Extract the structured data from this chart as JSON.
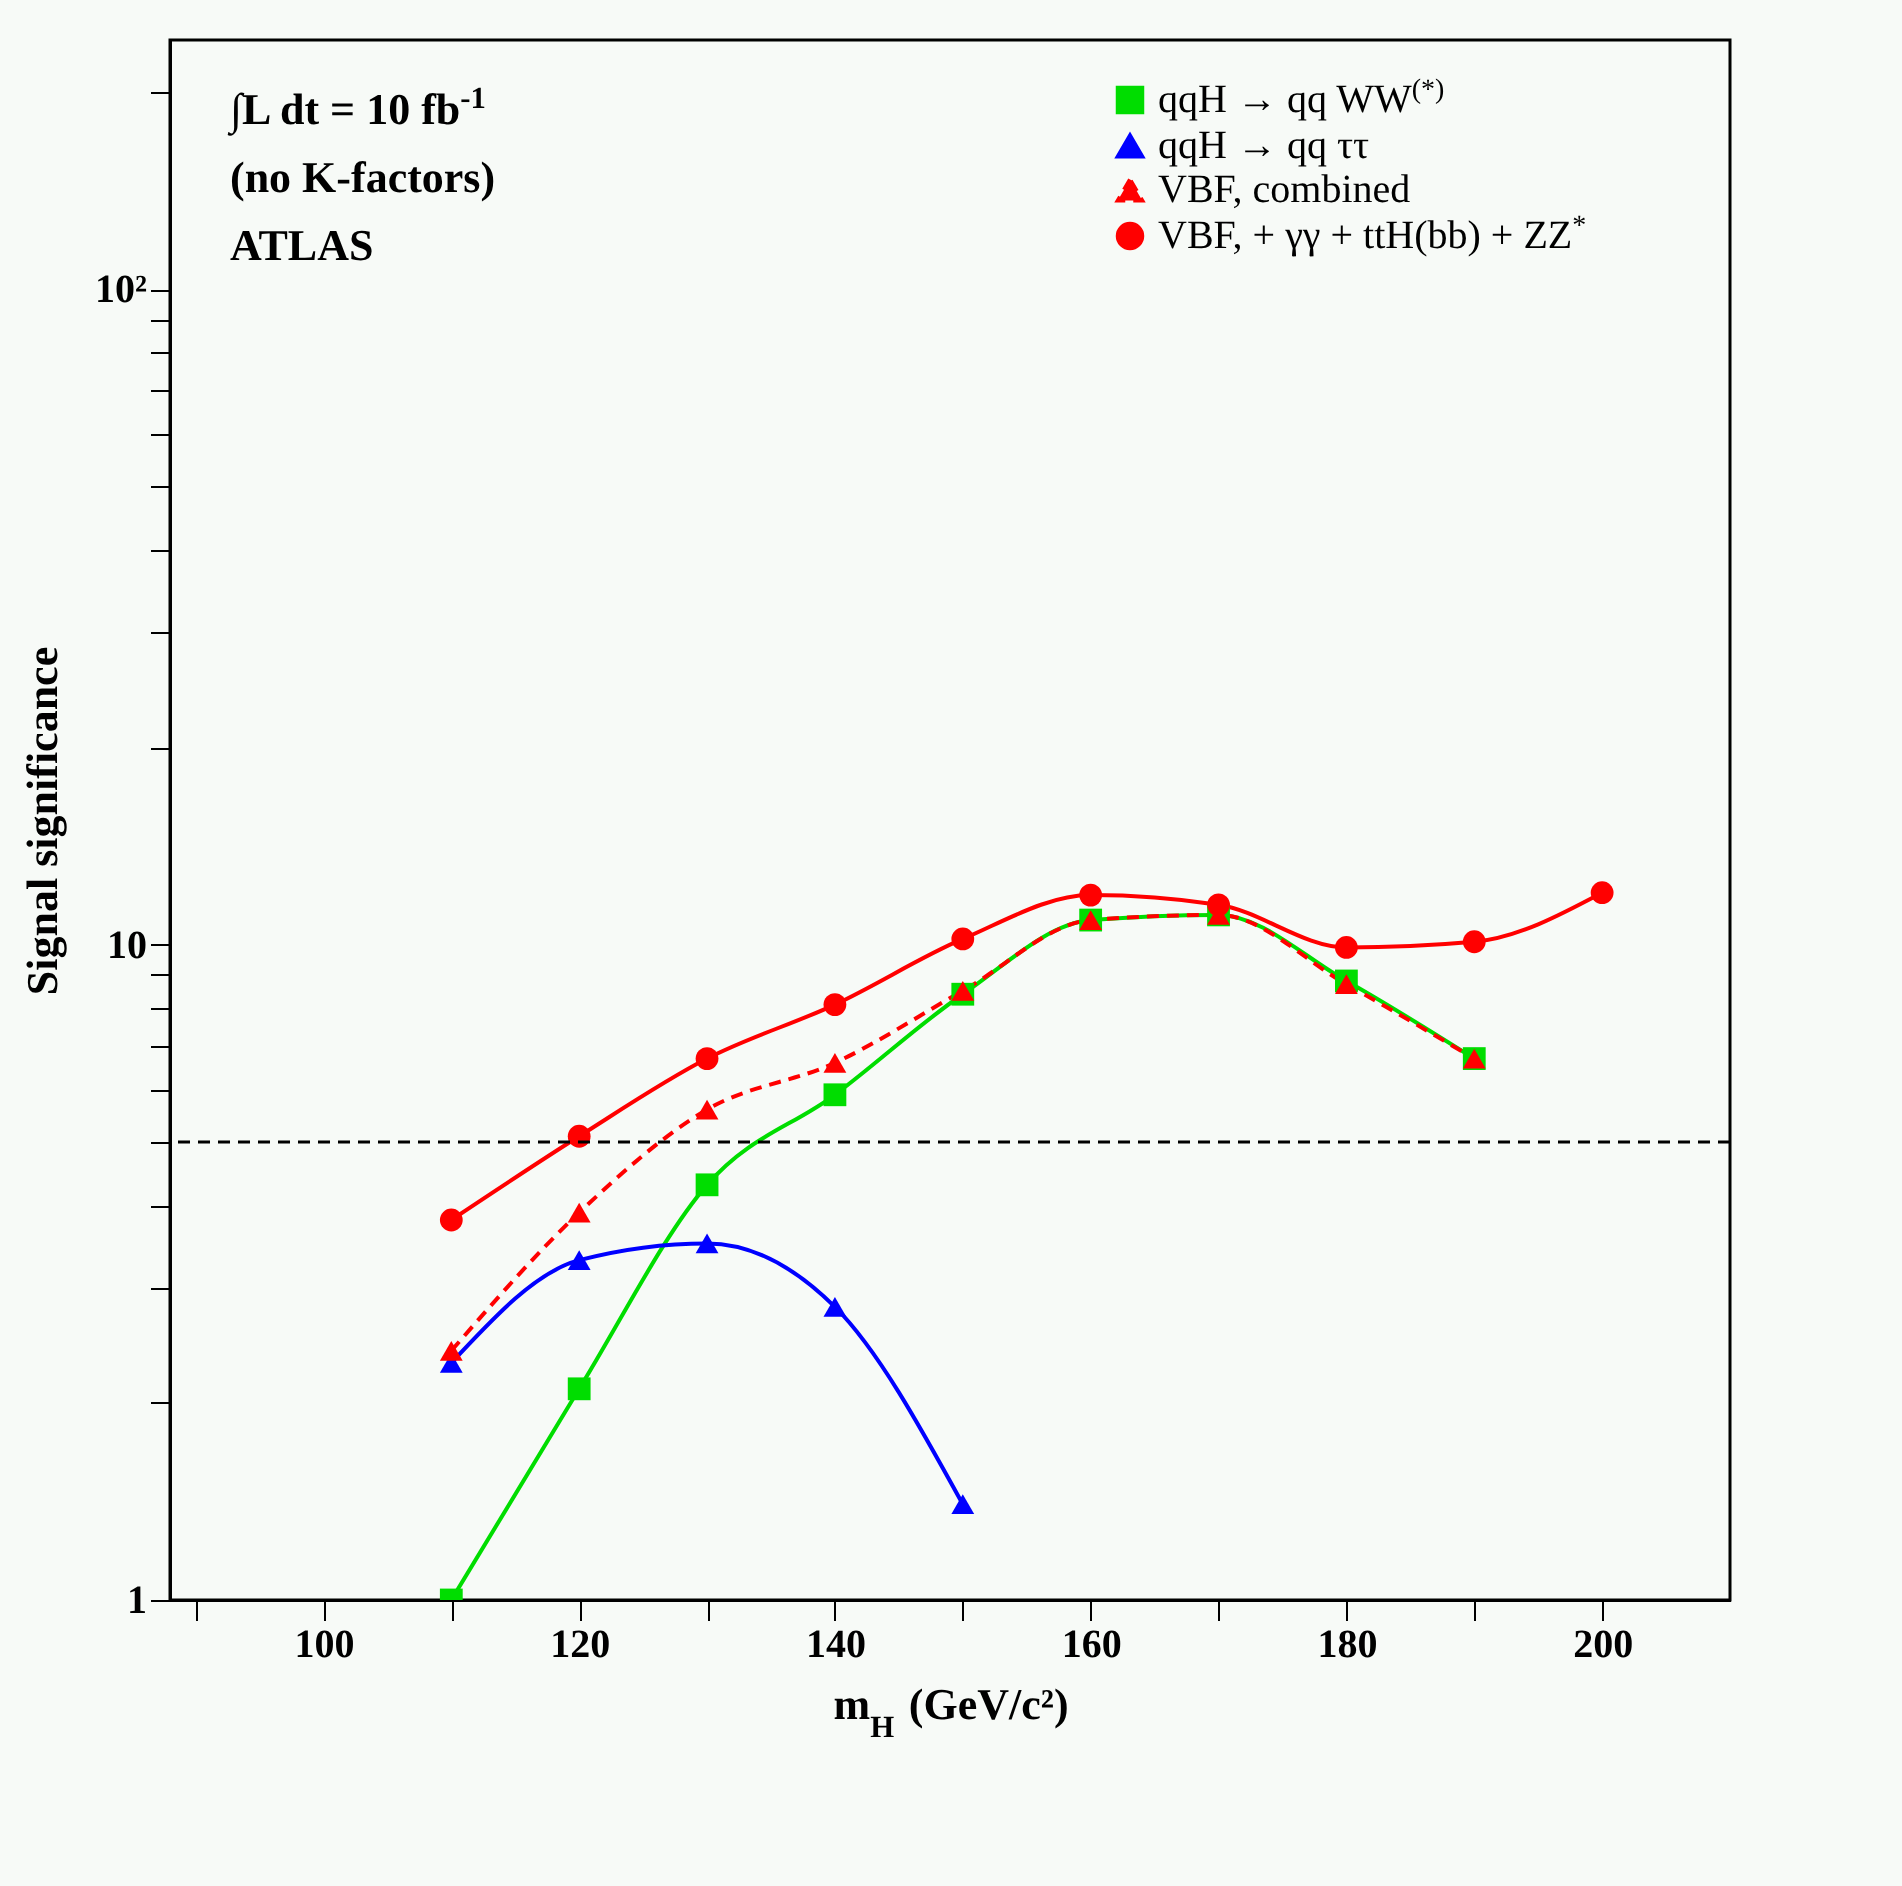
{
  "chart_data": {
    "type": "line",
    "xlabel": "m$_{H}$ (GeV/c²)",
    "ylabel": "Signal significance",
    "annotations": [
      "∫L dt = 10 fb$^{-1}$",
      "(no K-factors)",
      "ATLAS"
    ],
    "x": [
      110,
      120,
      130,
      140,
      150,
      160,
      170,
      180,
      190,
      200
    ],
    "series": [
      {
        "name": "qqH → qq WW$^{(*)}$",
        "color": "#00dd00",
        "marker": "square",
        "values": [
          1.0,
          2.1,
          4.3,
          5.9,
          8.4,
          10.9,
          11.1,
          8.8,
          6.7,
          null
        ]
      },
      {
        "name": "qqH → qq ττ",
        "color": "#0000ff",
        "marker": "triangle",
        "values": [
          2.3,
          3.3,
          3.5,
          2.8,
          1.4,
          null,
          null,
          null,
          null,
          null
        ]
      },
      {
        "name": "VBF, combined",
        "color": "#ff0000",
        "marker": "triangle",
        "line_style": "dashed",
        "values": [
          2.4,
          3.9,
          5.6,
          6.6,
          8.5,
          10.9,
          11.1,
          8.7,
          6.7,
          null
        ]
      },
      {
        "name": "VBF, + γγ + ttH(bb) + ZZ$^{*}$",
        "color": "#ff0000",
        "marker": "circle",
        "values": [
          3.8,
          5.1,
          6.7,
          8.1,
          10.2,
          11.9,
          11.5,
          9.9,
          10.1,
          12.0
        ]
      }
    ],
    "xlim": [
      88,
      210
    ],
    "xticks": [
      {
        "value": 90,
        "label": null
      },
      100,
      {
        "value": 110,
        "label": null
      },
      120,
      {
        "value": 130,
        "label": null
      },
      140,
      {
        "value": 150,
        "label": null
      },
      160,
      {
        "value": 170,
        "label": null
      },
      180,
      {
        "value": 190,
        "label": null
      },
      200
    ],
    "ylim": [
      1,
      240
    ],
    "log": true,
    "yticks": [
      1,
      {
        "value": 2,
        "label": null
      },
      {
        "value": 3,
        "label": null
      },
      {
        "value": 4,
        "label": null
      },
      {
        "value": 5,
        "label": null
      },
      {
        "value": 6,
        "label": null
      },
      {
        "value": 7,
        "label": null
      },
      {
        "value": 8,
        "label": null
      },
      {
        "value": 9,
        "label": null
      },
      10,
      {
        "value": 20,
        "label": null
      },
      {
        "value": 30,
        "label": null
      },
      {
        "value": 40,
        "label": null
      },
      {
        "value": 50,
        "label": null
      },
      {
        "value": 60,
        "label": null
      },
      {
        "value": 70,
        "label": null
      },
      {
        "value": 80,
        "label": null
      },
      {
        "value": 90,
        "label": null
      },
      {
        "value": 100,
        "label": "10²"
      },
      {
        "value": 200,
        "label": null
      }
    ],
    "ref_lines": [
      {
        "axis": "y",
        "value": 5,
        "color": "#000000",
        "line_style": "dashed"
      }
    ],
    "grid": false,
    "legend": "top right"
  }
}
